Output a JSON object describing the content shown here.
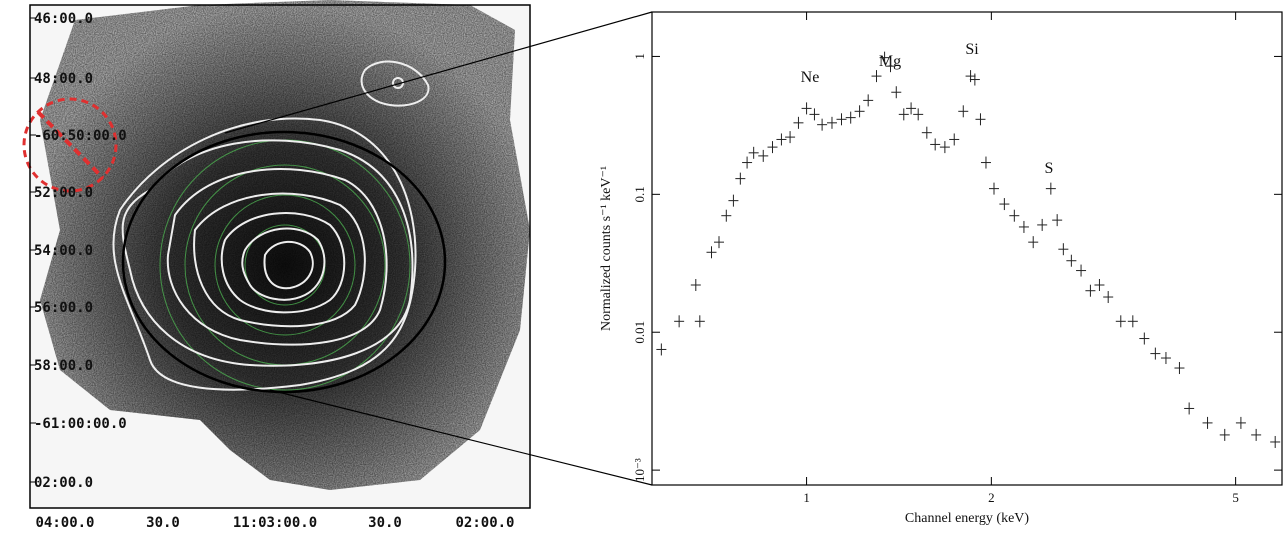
{
  "chart_data": [
    {
      "type": "image",
      "x_labels": [
        "04:00.0",
        "30.0",
        "11:03:00.0",
        "30.0",
        "02:00.0"
      ],
      "y_labels": [
        "46:00.0",
        "48:00.0",
        "-60:50:00.0",
        "52:00.0",
        "54:00.0",
        "56:00.0",
        "58:00.0",
        "-61:00:00.0",
        "02:00.0"
      ]
    },
    {
      "type": "errorbar",
      "x_label": "Channel energy (keV)",
      "y_label": "Normalized counts s⁻¹ keV⁻¹",
      "annotations": [
        "Ne",
        "Mg",
        "Si",
        "S"
      ],
      "xscale": "log",
      "yscale": "log",
      "xlim": [
        0.56,
        5.95
      ],
      "ylim": [
        0.00078,
        2.1
      ],
      "xticks": [
        1,
        2,
        5
      ],
      "yticks": [
        {
          "value": 0.001,
          "label": "10⁻³"
        },
        0.01,
        0.1,
        1
      ],
      "x": [
        0.58,
        0.62,
        0.66,
        0.67,
        0.7,
        0.72,
        0.74,
        0.76,
        0.78,
        0.8,
        0.82,
        0.85,
        0.88,
        0.91,
        0.94,
        0.97,
        1.0,
        1.03,
        1.06,
        1.1,
        1.14,
        1.18,
        1.22,
        1.26,
        1.3,
        1.34,
        1.37,
        1.4,
        1.44,
        1.48,
        1.52,
        1.57,
        1.62,
        1.68,
        1.74,
        1.8,
        1.85,
        1.88,
        1.92,
        1.96,
        2.02,
        2.1,
        2.18,
        2.26,
        2.34,
        2.42,
        2.5,
        2.56,
        2.62,
        2.7,
        2.8,
        2.9,
        3.0,
        3.1,
        3.25,
        3.4,
        3.55,
        3.7,
        3.85,
        4.05,
        4.2,
        4.5,
        4.8,
        5.1,
        5.4,
        5.8
      ],
      "series": [
        {
          "color": "#222222",
          "values": [
            0.0075,
            0.012,
            0.022,
            0.012,
            0.038,
            0.045,
            0.07,
            0.09,
            0.13,
            0.17,
            0.2,
            0.19,
            0.22,
            0.25,
            0.26,
            0.33,
            0.42,
            0.38,
            0.32,
            0.33,
            0.35,
            0.36,
            0.4,
            0.48,
            0.72,
            0.98,
            0.85,
            0.55,
            0.38,
            0.42,
            0.38,
            0.28,
            0.23,
            0.22,
            0.25,
            0.4,
            0.72,
            0.68,
            0.35,
            0.17,
            0.11,
            0.085,
            0.07,
            0.058,
            0.045,
            0.06,
            0.11,
            0.065,
            0.04,
            0.033,
            0.028,
            0.02,
            0.022,
            0.018,
            0.012,
            0.012,
            0.009,
            0.007,
            0.0065,
            0.0055,
            0.0028,
            0.0022,
            0.0018,
            0.0022,
            0.0018,
            0.0016
          ]
        }
      ]
    }
  ]
}
